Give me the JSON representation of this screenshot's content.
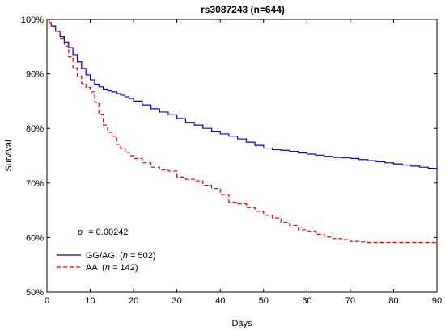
{
  "chart_data": {
    "type": "line",
    "title": "rs3087243 (n=644)",
    "xlabel": "Days",
    "ylabel": "Survival",
    "xlim": [
      0,
      90
    ],
    "ylim": [
      50,
      100
    ],
    "xticks": [
      0,
      10,
      20,
      30,
      40,
      50,
      60,
      70,
      80,
      90
    ],
    "yticks": [
      50,
      60,
      70,
      80,
      90,
      100
    ],
    "ytick_labels": [
      "50%",
      "60%",
      "70%",
      "80%",
      "90%",
      "100%"
    ],
    "grid": false,
    "legend_position": "bottom-left",
    "annotation": {
      "p_label": "p",
      "p_value": "= 0.00242"
    },
    "series": [
      {
        "name": "GG/AG",
        "legend_n": "n",
        "legend_count": "= 502)",
        "color": "#0000ee",
        "style": "solid",
        "x": [
          0,
          0.5,
          1,
          2,
          3,
          4,
          5,
          6,
          7,
          8,
          9,
          10,
          11,
          12,
          13,
          14,
          15,
          16,
          17,
          18,
          19,
          20,
          22,
          24,
          26,
          28,
          30,
          32,
          34,
          36,
          38,
          40,
          42,
          44,
          46,
          48,
          50,
          52,
          54,
          56,
          58,
          60,
          62,
          64,
          66,
          68,
          70,
          72,
          74,
          76,
          78,
          80,
          82,
          84,
          86,
          88,
          90
        ],
        "y": [
          100,
          99.4,
          98.8,
          97.8,
          96.8,
          95.8,
          94.8,
          93.5,
          92.2,
          91.0,
          89.8,
          88.9,
          88.1,
          87.6,
          87.2,
          86.9,
          86.7,
          86.4,
          86.1,
          85.8,
          85.5,
          85.0,
          84.3,
          83.6,
          83.0,
          82.5,
          81.8,
          81.1,
          80.6,
          80.0,
          79.5,
          79.0,
          78.6,
          78.1,
          77.5,
          76.9,
          76.4,
          76.1,
          76.0,
          75.8,
          75.5,
          75.3,
          75.1,
          74.9,
          74.7,
          74.6,
          74.5,
          74.3,
          74.1,
          73.9,
          73.7,
          73.5,
          73.3,
          73.1,
          72.9,
          72.7,
          72.6
        ]
      },
      {
        "name": "AA",
        "legend_n": "n",
        "legend_count": "= 142)",
        "color": "#ee0000",
        "style": "dashed",
        "x": [
          0,
          0.5,
          1,
          2,
          3,
          4,
          5,
          6,
          7,
          8,
          9,
          10,
          11,
          12,
          13,
          14,
          15,
          16,
          17,
          18,
          19,
          20,
          22,
          24,
          26,
          28,
          30,
          32,
          34,
          36,
          38,
          40,
          42,
          44,
          46,
          48,
          50,
          52,
          54,
          56,
          58,
          60,
          62,
          64,
          66,
          68,
          70,
          72,
          74,
          76,
          78,
          80,
          82,
          84,
          86,
          88,
          90
        ],
        "y": [
          100,
          99.3,
          98.6,
          97.8,
          96.5,
          95.1,
          93.1,
          91.1,
          89.6,
          88.2,
          87.5,
          86.7,
          84.8,
          82.6,
          80.6,
          79.3,
          78.6,
          77.1,
          76.3,
          75.6,
          75.0,
          74.5,
          73.7,
          72.9,
          72.4,
          72.2,
          71.1,
          70.7,
          70.4,
          69.6,
          69.0,
          67.9,
          66.5,
          66.2,
          65.5,
          64.8,
          64.1,
          63.6,
          62.8,
          62.2,
          61.4,
          61.2,
          60.6,
          60.1,
          59.8,
          59.6,
          59.3,
          59.2,
          59.1,
          59.1,
          59.1,
          59.1,
          59.1,
          59.1,
          59.1,
          59.1,
          59.1
        ]
      }
    ]
  }
}
